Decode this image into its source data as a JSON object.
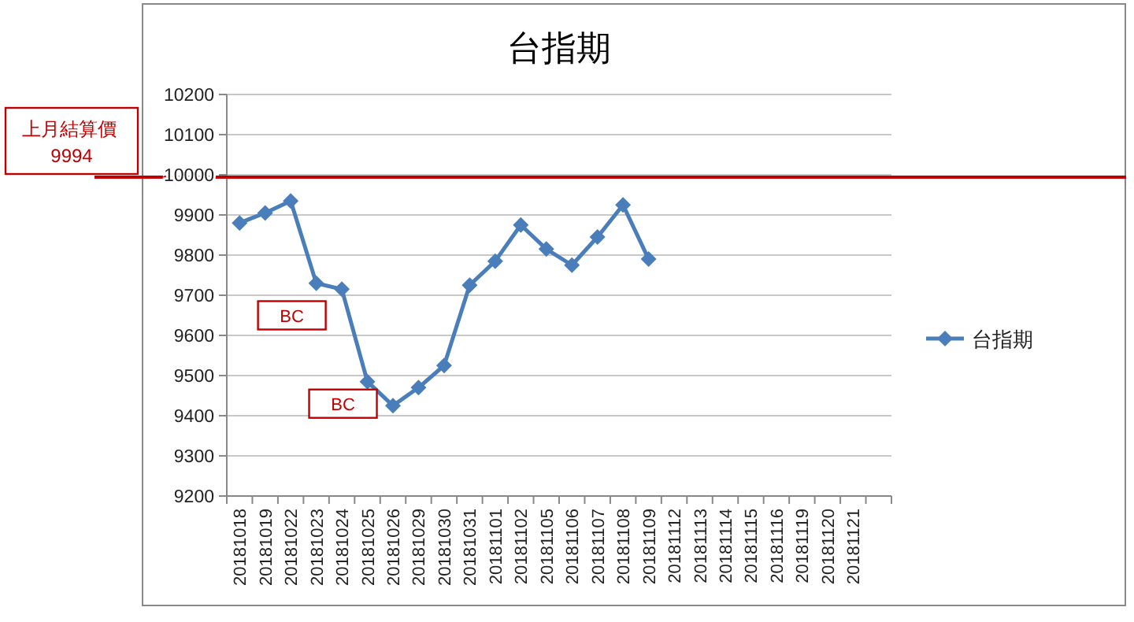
{
  "chart_data": {
    "type": "line",
    "title": "台指期",
    "categories": [
      "20181018",
      "20181019",
      "20181022",
      "20181023",
      "20181024",
      "20181025",
      "20181026",
      "20181029",
      "20181030",
      "20181031",
      "20181101",
      "20181102",
      "20181105",
      "20181106",
      "20181107",
      "20181108",
      "20181109",
      "20181112",
      "20181113",
      "20181114",
      "20181115",
      "20181116",
      "20181119",
      "20181120",
      "20181121",
      null
    ],
    "series": [
      {
        "name": "台指期",
        "color": "#4a7ebb",
        "values": [
          9880,
          9905,
          9935,
          9730,
          9715,
          9485,
          9425,
          9470,
          9525,
          9725,
          9785,
          9875,
          9815,
          9775,
          9845,
          9925,
          9790,
          null,
          null,
          null,
          null,
          null,
          null,
          null,
          null,
          null
        ]
      }
    ],
    "ylim": [
      9200,
      10200
    ],
    "yticks": [
      9200,
      9300,
      9400,
      9500,
      9600,
      9700,
      9800,
      9900,
      10000,
      10100,
      10200
    ],
    "grid": "y",
    "legend": "right",
    "marker": "diamond",
    "ref_lines": [
      {
        "axis": "y",
        "value": 9994,
        "label": "上月結算價 9994",
        "color": "#c00000"
      }
    ],
    "annotations": [
      "BC",
      "BC"
    ]
  }
}
